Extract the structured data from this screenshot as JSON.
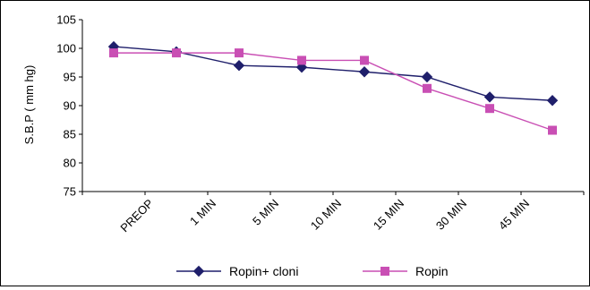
{
  "chart_data": {
    "type": "line",
    "title": "",
    "xlabel": "",
    "ylabel": "S.B.P ( mm hg)",
    "ylim": [
      75,
      105
    ],
    "yticks": [
      75,
      80,
      85,
      90,
      95,
      100,
      105
    ],
    "categories": [
      "",
      "PREOP",
      "1 MIN",
      "5 MIN",
      "10 MIN",
      "15 MIN",
      "30 MIN",
      "45 MIN"
    ],
    "grid": false,
    "legend_position": "bottom",
    "series": [
      {
        "name": "Ropin+ cloni",
        "color": "#1f1f6b",
        "marker": "diamond",
        "values": [
          100.3,
          99.4,
          97.0,
          96.7,
          95.9,
          95.0,
          91.5,
          90.9
        ]
      },
      {
        "name": "Ropin",
        "color": "#c94fb4",
        "marker": "square",
        "values": [
          99.2,
          99.2,
          99.2,
          97.9,
          97.9,
          93.0,
          89.5,
          85.7
        ]
      }
    ]
  }
}
